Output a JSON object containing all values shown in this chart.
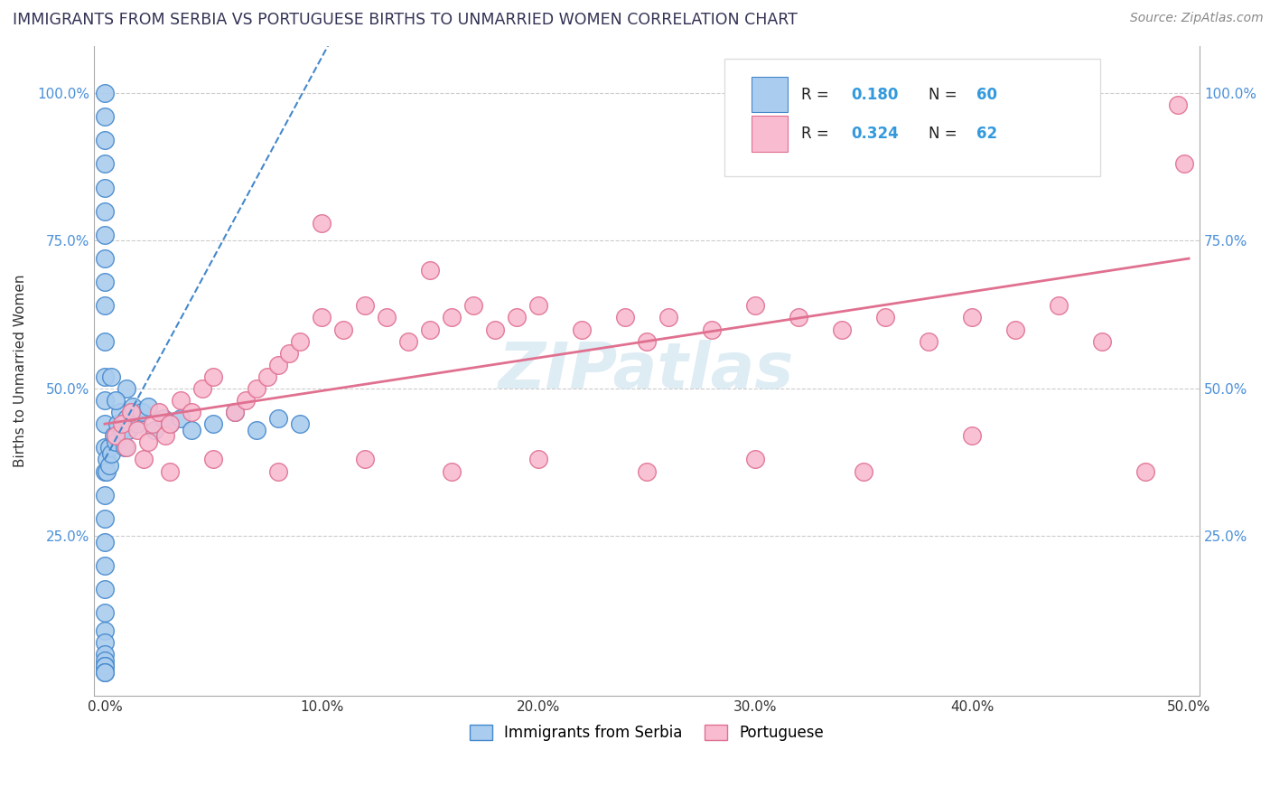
{
  "title": "IMMIGRANTS FROM SERBIA VS PORTUGUESE BIRTHS TO UNMARRIED WOMEN CORRELATION CHART",
  "source": "Source: ZipAtlas.com",
  "ylabel": "Births to Unmarried Women",
  "x_tick_labels": [
    "0.0%",
    "",
    "10.0%",
    "",
    "20.0%",
    "",
    "30.0%",
    "",
    "40.0%",
    "",
    "50.0%"
  ],
  "x_tick_values": [
    0.0,
    0.05,
    0.1,
    0.15,
    0.2,
    0.25,
    0.3,
    0.35,
    0.4,
    0.45,
    0.5
  ],
  "y_tick_labels": [
    "25.0%",
    "50.0%",
    "75.0%",
    "100.0%"
  ],
  "y_tick_values": [
    0.25,
    0.5,
    0.75,
    1.0
  ],
  "xlim": [
    -0.005,
    0.505
  ],
  "ylim": [
    -0.02,
    1.08
  ],
  "serbia_color": "#aaccee",
  "serbian_line_color": "#4488cc",
  "portuguese_color": "#f8bbd0",
  "portuguese_line_color": "#e07090",
  "watermark_color": "#d0e4f0",
  "serbia_x": [
    0.0,
    0.0,
    0.0,
    0.0,
    0.0,
    0.0,
    0.0,
    0.0,
    0.0,
    0.0,
    0.0,
    0.0,
    0.0,
    0.0,
    0.0,
    0.0,
    0.0,
    0.0,
    0.0,
    0.0,
    0.0,
    0.0,
    0.0,
    0.0,
    0.0,
    0.0,
    0.0,
    0.0,
    0.0,
    0.0,
    0.001,
    0.001,
    0.002,
    0.002,
    0.003,
    0.004,
    0.005,
    0.006,
    0.007,
    0.008,
    0.009,
    0.01,
    0.011,
    0.013,
    0.015,
    0.017,
    0.02,
    0.023,
    0.027,
    0.03,
    0.035,
    0.04,
    0.05,
    0.06,
    0.07,
    0.08,
    0.09,
    0.01,
    0.005,
    0.003
  ],
  "serbia_y": [
    1.0,
    0.96,
    0.92,
    0.88,
    0.84,
    0.8,
    0.76,
    0.72,
    0.68,
    0.64,
    0.58,
    0.52,
    0.48,
    0.44,
    0.4,
    0.36,
    0.32,
    0.28,
    0.24,
    0.2,
    0.16,
    0.12,
    0.09,
    0.07,
    0.05,
    0.04,
    0.03,
    0.03,
    0.02,
    0.02,
    0.38,
    0.36,
    0.4,
    0.37,
    0.39,
    0.42,
    0.41,
    0.44,
    0.46,
    0.43,
    0.4,
    0.45,
    0.43,
    0.47,
    0.44,
    0.46,
    0.47,
    0.43,
    0.45,
    0.44,
    0.45,
    0.43,
    0.44,
    0.46,
    0.43,
    0.45,
    0.44,
    0.5,
    0.48,
    0.52
  ],
  "portuguese_x": [
    0.005,
    0.008,
    0.01,
    0.012,
    0.015,
    0.018,
    0.02,
    0.022,
    0.025,
    0.028,
    0.03,
    0.035,
    0.04,
    0.045,
    0.05,
    0.06,
    0.065,
    0.07,
    0.075,
    0.08,
    0.085,
    0.09,
    0.1,
    0.11,
    0.12,
    0.13,
    0.14,
    0.15,
    0.16,
    0.17,
    0.18,
    0.19,
    0.2,
    0.22,
    0.24,
    0.25,
    0.26,
    0.28,
    0.3,
    0.32,
    0.34,
    0.36,
    0.38,
    0.4,
    0.42,
    0.44,
    0.46,
    0.48,
    0.495,
    0.498,
    0.03,
    0.05,
    0.08,
    0.12,
    0.16,
    0.2,
    0.25,
    0.3,
    0.1,
    0.15,
    0.35,
    0.4
  ],
  "portuguese_y": [
    0.42,
    0.44,
    0.4,
    0.46,
    0.43,
    0.38,
    0.41,
    0.44,
    0.46,
    0.42,
    0.44,
    0.48,
    0.46,
    0.5,
    0.52,
    0.46,
    0.48,
    0.5,
    0.52,
    0.54,
    0.56,
    0.58,
    0.62,
    0.6,
    0.64,
    0.62,
    0.58,
    0.6,
    0.62,
    0.64,
    0.6,
    0.62,
    0.64,
    0.6,
    0.62,
    0.58,
    0.62,
    0.6,
    0.64,
    0.62,
    0.6,
    0.62,
    0.58,
    0.62,
    0.6,
    0.64,
    0.58,
    0.36,
    0.98,
    0.88,
    0.36,
    0.38,
    0.36,
    0.38,
    0.36,
    0.38,
    0.36,
    0.38,
    0.78,
    0.7,
    0.36,
    0.42
  ]
}
